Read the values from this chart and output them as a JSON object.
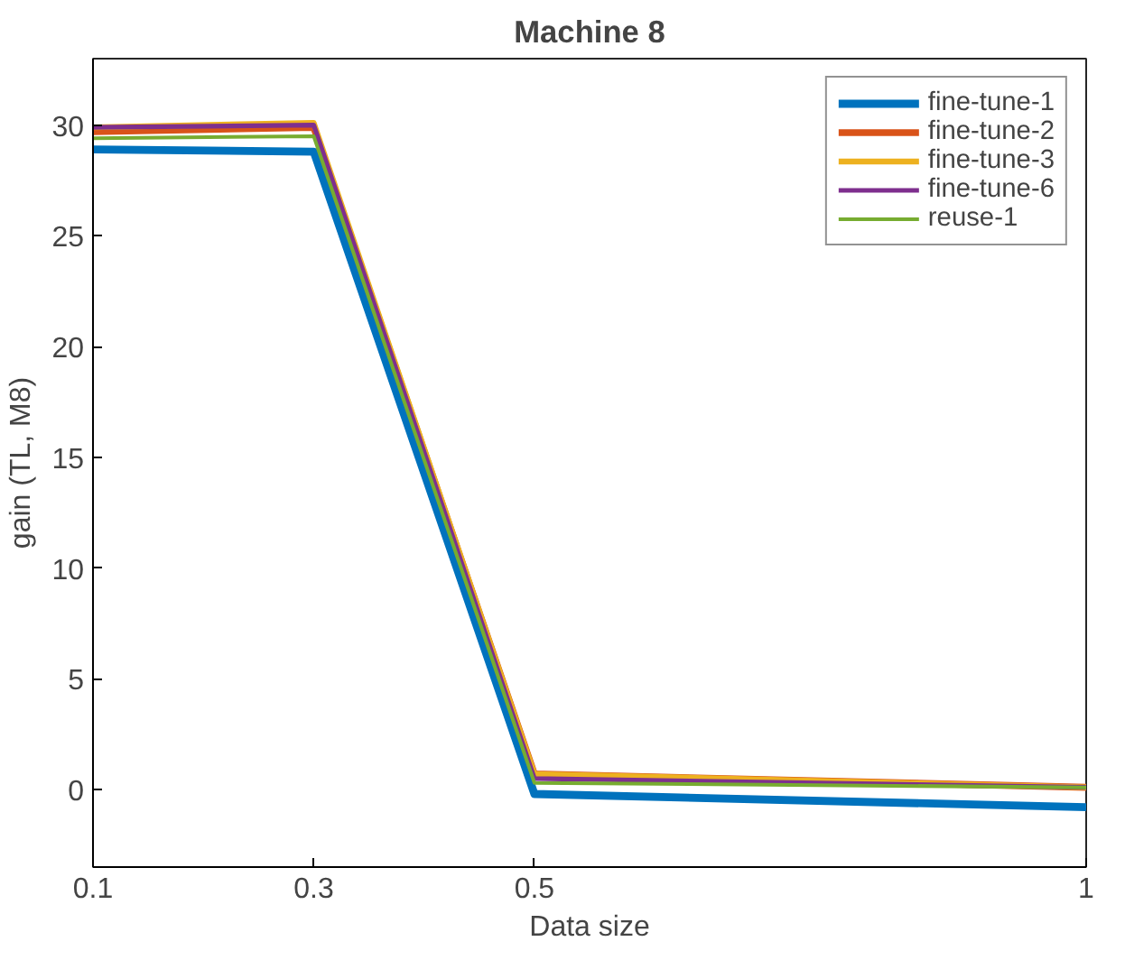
{
  "chart_data": {
    "type": "line",
    "title": "Machine 8",
    "xlabel": "Data size",
    "ylabel": "gain (TL, M8)",
    "x": [
      0.1,
      0.3,
      0.5,
      1
    ],
    "xlim": [
      0.1,
      1
    ],
    "xticks": [
      0.1,
      0.3,
      0.5,
      1
    ],
    "ylim": [
      -3.5,
      33
    ],
    "yticks": [
      0,
      5,
      10,
      15,
      20,
      25,
      30
    ],
    "grid": false,
    "legend": "top right",
    "marker": "none",
    "line_style": "solid",
    "series": [
      {
        "name": "fine-tune-1",
        "color": "#0072bd",
        "values": [
          28.9,
          28.8,
          -0.2,
          -0.8
        ]
      },
      {
        "name": "fine-tune-2",
        "color": "#d95319",
        "values": [
          29.7,
          29.9,
          0.7,
          0.1
        ]
      },
      {
        "name": "fine-tune-3",
        "color": "#edb120",
        "values": [
          29.9,
          30.1,
          0.7,
          0.1
        ]
      },
      {
        "name": "fine-tune-6",
        "color": "#7e2f8e",
        "values": [
          29.9,
          30.0,
          0.5,
          0.1
        ]
      },
      {
        "name": "reuse-1",
        "color": "#77ac30",
        "values": [
          29.4,
          29.5,
          0.3,
          0.1
        ]
      }
    ]
  }
}
